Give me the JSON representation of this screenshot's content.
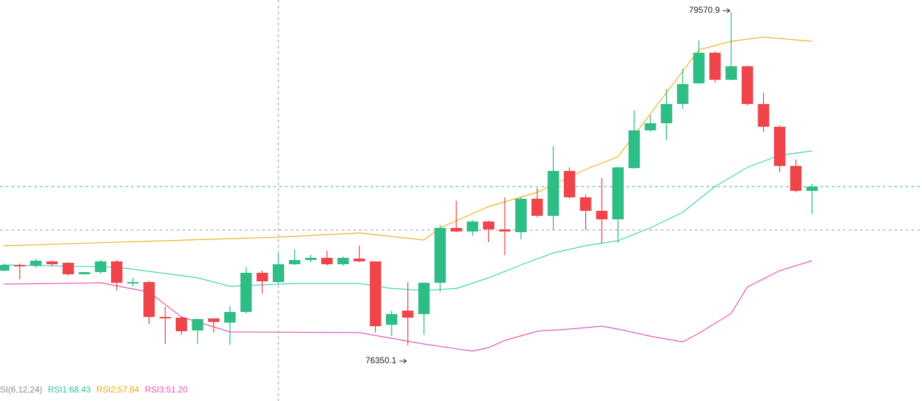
{
  "chart_data": {
    "type": "candlestick",
    "up_color": "#2ebd85",
    "down_color": "#ef454a",
    "xlim": [
      -0.22,
      56.8
    ],
    "ylim": [
      75813.3,
      79687.9
    ],
    "open": [
      77072.7,
      77127.8,
      77120.9,
      77162.2,
      77148.4,
      77038.3,
      77058.9,
      77162.2,
      76948.8,
      76962.6,
      76625.4,
      76618.5,
      76494.6,
      76611.6,
      76570.3,
      76673.6,
      77052.1,
      76962.6,
      77134.6,
      77175.9,
      77196.6,
      77134.6,
      77189.7,
      77162.2,
      76549.7,
      76687.3,
      76652.9,
      76955.7,
      77485.6,
      77451.2,
      77547.6,
      77471.9,
      77444.3,
      77767.8,
      77602.6,
      78036.2,
      77781.6,
      77650.8,
      77568.2,
      78063.7,
      78428.5,
      78497.3,
      78683.1,
      78882.7,
      79178.6,
      78917.1,
      79047.8,
      78683.1,
      78462.9,
      78084.4,
      77843.5
    ],
    "high": [
      77141.5,
      77141.5,
      77189.7,
      77169.1,
      77155.3,
      77058.9,
      77175.9,
      77175.9,
      77003.9,
      76976.4,
      76728.6,
      76632.3,
      76611.6,
      76611.6,
      76728.6,
      77107.1,
      77072.7,
      77244.8,
      77279.2,
      77224.1,
      77265.4,
      77210.4,
      77313.6,
      77162.2,
      76687.3,
      76962.6,
      76962.6,
      77513.2,
      77747.1,
      77561.3,
      77554.5,
      77781.6,
      77781.6,
      77871.0,
      78277.1,
      78070.6,
      77809.1,
      77967.4,
      78077.5,
      78621.2,
      78573.0,
      78827.6,
      79020.3,
      79295.6,
      79192.4,
      79570.9,
      79054.7,
      78793.2,
      78476.6,
      78146.3,
      77912.3
    ],
    "low": [
      77065.8,
      76990.1,
      77100.2,
      77114.0,
      77024.5,
      77031.4,
      77045.2,
      76880.0,
      76921.3,
      76556.6,
      76363.9,
      76453.3,
      76363.9,
      76474.0,
      76357.0,
      76659.8,
      76852.5,
      76948.8,
      77127.8,
      77155.3,
      77120.9,
      77120.9,
      77155.3,
      76474.0,
      76439.6,
      76350.1,
      76453.3,
      76866.3,
      77444.3,
      77409.9,
      77348.0,
      77224.1,
      77375.5,
      77588.9,
      77465.0,
      77767.8,
      77465.0,
      77341.1,
      77341.1,
      78056.8,
      78414.7,
      78332.1,
      78634.9,
      78875.8,
      78889.6,
      78910.2,
      78669.3,
      78414.7,
      78022.4,
      77829.7,
      77623.3
    ],
    "close": [
      77127.8,
      77120.9,
      77169.1,
      77134.6,
      77038.3,
      77058.9,
      77162.2,
      76955.7,
      76962.6,
      76625.4,
      76618.5,
      76487.7,
      76604.7,
      76577.2,
      76673.6,
      77052.1,
      76969.5,
      77134.6,
      77175.9,
      77196.6,
      77134.6,
      77196.6,
      77162.2,
      76535.9,
      76652.9,
      76618.5,
      76955.7,
      77485.6,
      77451.2,
      77547.6,
      77471.9,
      77451.2,
      77767.8,
      77602.6,
      78036.2,
      77781.6,
      77650.8,
      77568.2,
      78070.6,
      78428.5,
      78497.3,
      78683.1,
      78875.8,
      79178.6,
      78917.1,
      79047.8,
      78683.1,
      78462.9,
      78084.4,
      77843.5,
      77884.8
    ],
    "bands": [
      {
        "name": "upper",
        "color": "#f0b020",
        "x": [
          0,
          17,
          22,
          26,
          27,
          30,
          33,
          36,
          38,
          40,
          42,
          43,
          45,
          47,
          50
        ],
        "values": [
          77313.6,
          77396.2,
          77437.5,
          77368.6,
          77485.6,
          77692.1,
          77829.7,
          78050.0,
          78173.8,
          78586.8,
          78999.7,
          79206.1,
          79288.7,
          79330.0,
          79288.7
        ]
      },
      {
        "name": "middle",
        "color": "#3ed1b8",
        "x": [
          0,
          7,
          12,
          14,
          18,
          22,
          24,
          26,
          28,
          30,
          32,
          34,
          36,
          38,
          40,
          42,
          44,
          46,
          48,
          50
        ],
        "values": [
          77127.8,
          77107.1,
          77003.9,
          76921.3,
          76948.8,
          76948.8,
          76900.7,
          76880.0,
          76900.7,
          77003.9,
          77127.8,
          77244.8,
          77313.6,
          77361.8,
          77485.6,
          77637.0,
          77884.8,
          78070.6,
          78187.6,
          78228.9
        ]
      },
      {
        "name": "lower",
        "color": "#e255b4",
        "x": [
          0,
          6,
          9,
          11,
          14,
          22,
          26,
          29,
          30,
          31,
          33,
          35,
          37,
          38,
          40,
          42,
          43,
          45,
          46,
          48,
          50
        ],
        "values": [
          76942.0,
          76955.7,
          76866.3,
          76625.4,
          76480.9,
          76474.0,
          76363.9,
          76295.0,
          76329.5,
          76398.3,
          76487.7,
          76508.4,
          76535.9,
          76508.4,
          76439.6,
          76384.5,
          76467.1,
          76659.8,
          76914.4,
          77072.7,
          77169.1
        ]
      }
    ],
    "last_price_line": 77884.8,
    "crosshair": {
      "x": 17,
      "y": 77465.0
    },
    "annotations": [
      {
        "value": 79570.9,
        "x": 45
      },
      {
        "value": 76350.1,
        "x": 25
      }
    ],
    "legend": [
      {
        "text": "SI(6,12,24)",
        "color": "#8a8a8a"
      },
      {
        "text": "RSI1:68.43",
        "color": "#2ebd9e"
      },
      {
        "text": "RSI2:57.84",
        "color": "#f0a500"
      },
      {
        "text": "RSI3:51.20",
        "color": "#e255b4"
      }
    ]
  }
}
